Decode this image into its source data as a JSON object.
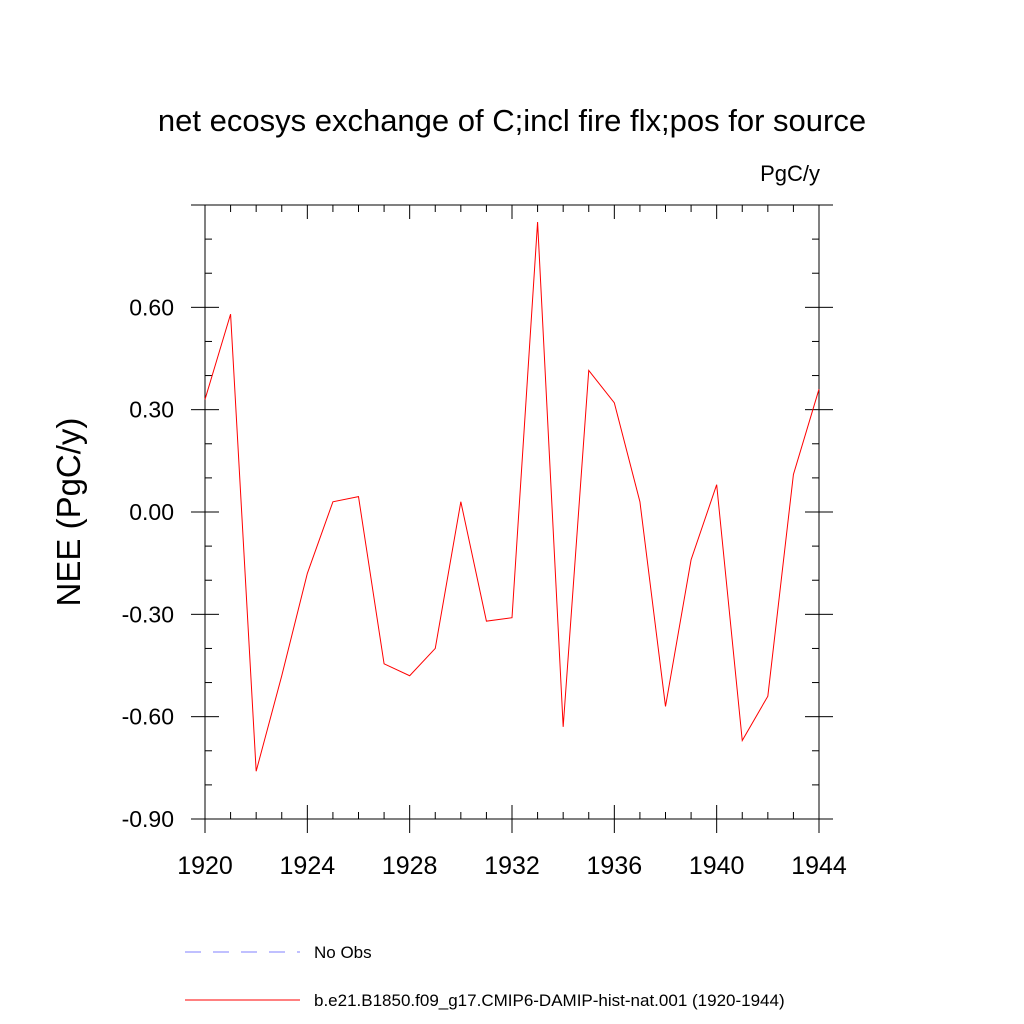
{
  "chart_data": {
    "type": "line",
    "title": "net ecosys exchange of C;incl fire flx;pos for source",
    "units_label": "PgC/y",
    "ylabel": "NEE  (PgC/y)",
    "xlabel": "",
    "xlim": [
      1920,
      1944
    ],
    "ylim": [
      -0.9,
      0.9
    ],
    "x_ticks": [
      1920,
      1924,
      1928,
      1932,
      1936,
      1940,
      1944
    ],
    "x_tick_labels": [
      "1920",
      "1924",
      "1928",
      "1932",
      "1936",
      "1940",
      "1944"
    ],
    "y_ticks": [
      -0.9,
      -0.6,
      -0.3,
      0.0,
      0.3,
      0.6
    ],
    "y_tick_labels": [
      "-0.90",
      "-0.60",
      "-0.30",
      "0.00",
      "0.30",
      "0.60"
    ],
    "grid": false,
    "legend_position": "bottom",
    "series": [
      {
        "name": "No Obs",
        "style": "dashed",
        "color": "#8080ff",
        "x": [],
        "y": []
      },
      {
        "name": "b.e21.B1850.f09_g17.CMIP6-DAMIP-hist-nat.001 (1920-1944)",
        "style": "solid",
        "color": "#ff0000",
        "x": [
          1920,
          1921,
          1922,
          1923,
          1924,
          1925,
          1926,
          1927,
          1928,
          1929,
          1930,
          1931,
          1932,
          1933,
          1934,
          1935,
          1936,
          1937,
          1938,
          1939,
          1940,
          1941,
          1942,
          1943,
          1944
        ],
        "y": [
          0.33,
          0.58,
          -0.76,
          -0.48,
          -0.18,
          0.03,
          0.045,
          -0.445,
          -0.48,
          -0.4,
          0.03,
          -0.32,
          -0.31,
          0.85,
          -0.63,
          0.415,
          0.32,
          0.03,
          -0.57,
          -0.14,
          0.08,
          -0.67,
          -0.54,
          0.11,
          0.36
        ]
      }
    ]
  }
}
